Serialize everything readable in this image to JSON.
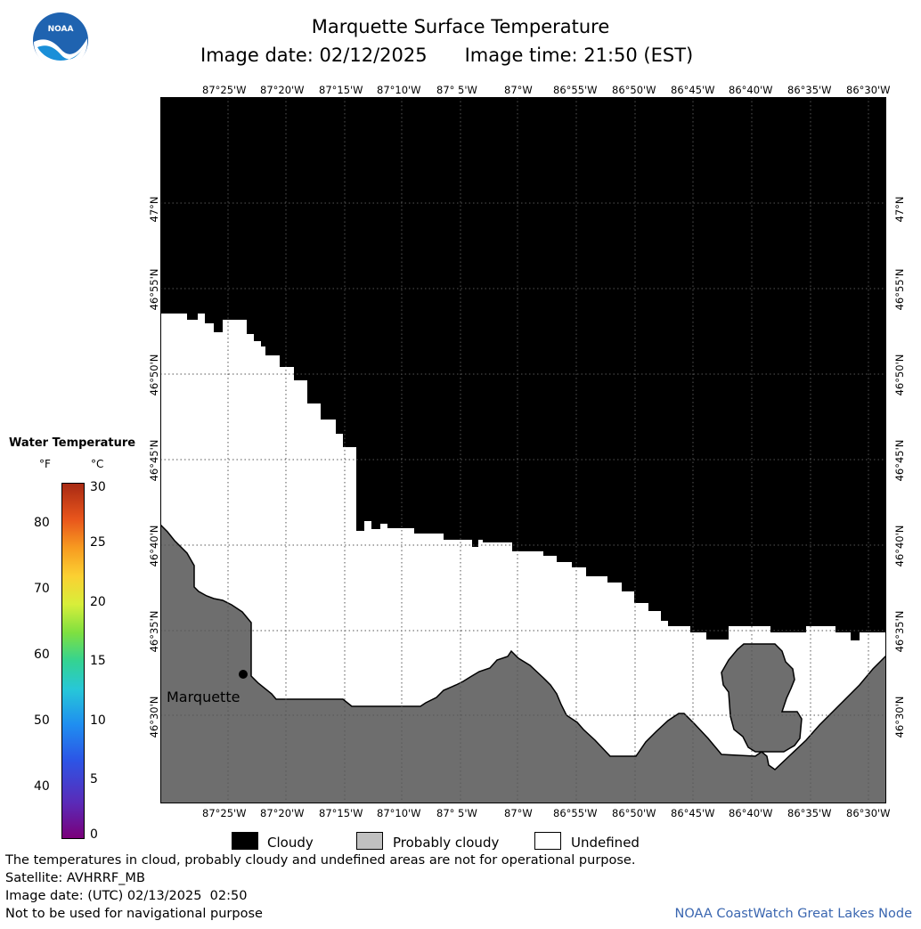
{
  "title": "Marquette Surface Temperature",
  "image_date_label": "Image date: 02/12/2025",
  "image_time_label": "Image time: 21:50 (EST)",
  "logo_text": "NOAA",
  "lon_labels": [
    "87°25'W",
    "87°20'W",
    "87°15'W",
    "87°10'W",
    "87° 5'W",
    "87°W",
    "86°55'W",
    "86°50'W",
    "86°45'W",
    "86°40'W",
    "86°35'W",
    "86°30'W"
  ],
  "lat_labels": [
    "47°N",
    "46°55'N",
    "46°50'N",
    "46°45'N",
    "46°40'N",
    "46°35'N",
    "46°30'N"
  ],
  "place_label": "Marquette",
  "legend": {
    "title": "Water Temperature",
    "unit_f": "°F",
    "unit_c": "°C",
    "f_ticks": [
      "80",
      "70",
      "60",
      "50",
      "40"
    ],
    "c_ticks": [
      "30",
      "25",
      "20",
      "15",
      "10",
      "5",
      "0"
    ]
  },
  "categories": [
    {
      "label": "Cloudy",
      "color": "#000000"
    },
    {
      "label": "Probably cloudy",
      "color": "#c0c0c0"
    },
    {
      "label": "Undefined",
      "color": "#ffffff"
    }
  ],
  "footer": {
    "note": "The temperatures in cloud, probably cloudy and undefined areas are not for operational purpose.",
    "satellite": "Satellite: AVHRRF_MB",
    "utc_date": "Image date: (UTC) 02/13/2025  02:50",
    "nav": "Not to be used for navigational purpose",
    "credit": "NOAA CoastWatch Great Lakes Node"
  },
  "colors": {
    "land": "#6e6e6e",
    "cloud": "#000000",
    "undefined": "#ffffff",
    "grid": "#555555"
  }
}
